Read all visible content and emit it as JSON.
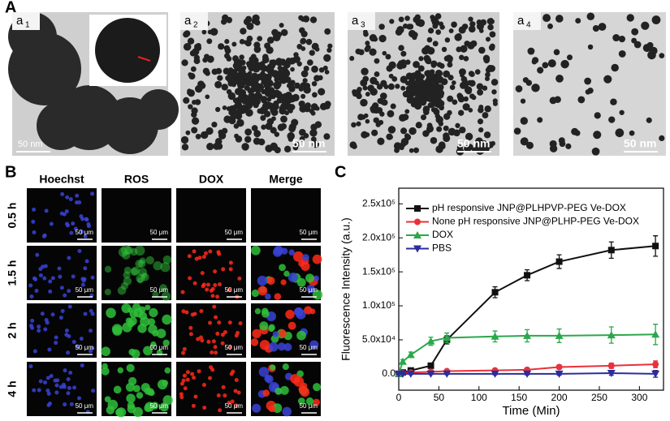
{
  "panel_a": {
    "label": "A",
    "images": [
      {
        "label": "a",
        "sub": "1",
        "scale": "50 nm"
      },
      {
        "label": "a",
        "sub": "2",
        "scale": "50 nm"
      },
      {
        "label": "a",
        "sub": "3",
        "scale": "50 nm"
      },
      {
        "label": "a",
        "sub": "4",
        "scale": "50 nm"
      }
    ]
  },
  "panel_b": {
    "label": "B",
    "columns": [
      "Hoechst",
      "ROS",
      "DOX",
      "Merge"
    ],
    "rows": [
      "0.5 h",
      "1.5 h",
      "2 h",
      "4 h"
    ],
    "scale": "50 μm"
  },
  "panel_c": {
    "label": "C"
  },
  "chart_data": {
    "type": "line",
    "x_label": "Time (Min)",
    "y_label": "Fluorescence Intensity (a.u.)",
    "x": [
      0,
      5,
      15,
      40,
      60,
      120,
      160,
      200,
      265,
      320
    ],
    "series": [
      {
        "name": "pH responsive JNP@PLHPVP-PEG Ve-DOX",
        "color": "#111111",
        "marker": "square",
        "values": [
          0,
          2000,
          5000,
          12000,
          50000,
          120000,
          145000,
          165000,
          182000,
          188000
        ],
        "errors": [
          1000,
          1500,
          2000,
          3000,
          6000,
          8000,
          8000,
          10000,
          12000,
          15000
        ]
      },
      {
        "name": "None pH responsive JNP@PLHP-PEG Ve-DOX",
        "color": "#e8313a",
        "marker": "circle",
        "values": [
          0,
          1000,
          2000,
          3000,
          4000,
          5000,
          6000,
          10000,
          12000,
          14000
        ],
        "errors": [
          500,
          800,
          1000,
          1500,
          1500,
          2000,
          2500,
          3000,
          4000,
          5000
        ]
      },
      {
        "name": "DOX",
        "color": "#2aa84a",
        "marker": "triangle",
        "values": [
          0,
          18000,
          28000,
          48000,
          53000,
          55000,
          56000,
          56000,
          57000,
          58000
        ],
        "errors": [
          1000,
          3000,
          4000,
          6000,
          7000,
          8000,
          9000,
          10000,
          12000,
          15000
        ]
      },
      {
        "name": "PBS",
        "color": "#2b2d9a",
        "marker": "triangle-down",
        "values": [
          0,
          0,
          0,
          0,
          0,
          0,
          0,
          0,
          1000,
          0
        ],
        "errors": [
          500,
          500,
          800,
          1000,
          1000,
          1500,
          1500,
          2000,
          3000,
          5000
        ]
      }
    ],
    "xlim": [
      0,
      330
    ],
    "xticks": [
      0,
      50,
      100,
      150,
      200,
      250,
      300
    ],
    "ylim": [
      -24000,
      273000
    ],
    "yticks": [
      {
        "value": 0,
        "label": "0.0"
      },
      {
        "value": 50000,
        "label": "5.0x10⁴"
      },
      {
        "value": 100000,
        "label": "1.0x10⁵"
      },
      {
        "value": 150000,
        "label": "1.5x10⁵"
      },
      {
        "value": 200000,
        "label": "2.0x10⁵"
      },
      {
        "value": 250000,
        "label": "2.5x10⁵"
      }
    ],
    "legend": "upper-left"
  }
}
